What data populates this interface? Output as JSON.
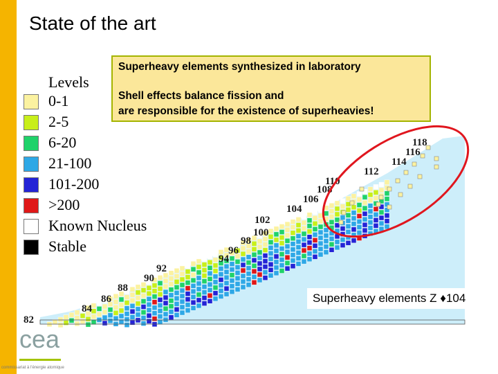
{
  "slide": {
    "title": "State of the art",
    "accent_color": "#f5b400"
  },
  "legend": {
    "heading": "Levels",
    "items": [
      {
        "label": "0-1",
        "color": "#fbf2a0"
      },
      {
        "label": "2-5",
        "color": "#c8ef1a"
      },
      {
        "label": "6-20",
        "color": "#1fd26a"
      },
      {
        "label": "21-100",
        "color": "#2ea8e6"
      },
      {
        "label": "101-200",
        "color": "#2424d6"
      },
      {
        "label": ">200",
        "color": "#e01818"
      },
      {
        "label": "Known Nucleus",
        "color": "#ffffff"
      },
      {
        "label": "Stable",
        "color": "#000000"
      }
    ]
  },
  "infobox": {
    "line1": "Superheavy elements synthesized in laboratory",
    "line2": "Shell effects balance fission and",
    "line3": "are responsible for the existence of superheavies!"
  },
  "chart": {
    "z_labels": [
      "82",
      "84",
      "86",
      "88",
      "90",
      "92",
      "94",
      "96",
      "98",
      "100",
      "102",
      "104",
      "106",
      "108",
      "110",
      "112",
      "114",
      "116",
      "118"
    ],
    "background_color": "#cdeefa",
    "highlight_color": "#e0161e"
  },
  "caption": {
    "prefix": "Superheavy elements Z ",
    "symbol": "♦",
    "suffix": "104"
  },
  "logo": {
    "text": "cea",
    "color": "#8aa0a0",
    "underline_color": "#a4c400",
    "footer": "commissariat à l'énergie atomique"
  }
}
